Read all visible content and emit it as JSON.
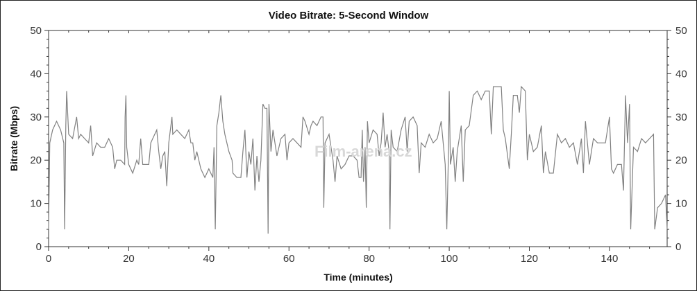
{
  "chart_data": {
    "type": "line",
    "title": "Video Bitrate: 5-Second Window",
    "xlabel": "Time (minutes)",
    "ylabel": "Bitrate (Mbps)",
    "xlim": [
      0,
      154.4
    ],
    "ylim": [
      0,
      50
    ],
    "x_ticks": [
      "0",
      "20",
      "40",
      "60",
      "80",
      "100",
      "120",
      "140"
    ],
    "y_ticks": [
      "0",
      "10",
      "20",
      "30",
      "40",
      "50"
    ],
    "right_axis_ticks": [
      "0",
      "10",
      "20",
      "30",
      "40",
      "50"
    ],
    "grid": false,
    "legend": "none",
    "line_color": "#808080",
    "watermark": "Film-arena.cz",
    "series": [
      {
        "points": [
          [
            0,
            4
          ],
          [
            0.3,
            24
          ],
          [
            1,
            27
          ],
          [
            2,
            29
          ],
          [
            3,
            27
          ],
          [
            3.8,
            24
          ],
          [
            4,
            4
          ],
          [
            4.3,
            28
          ],
          [
            4.5,
            36
          ],
          [
            5,
            26
          ],
          [
            6,
            25
          ],
          [
            7,
            30
          ],
          [
            7.5,
            25
          ],
          [
            8,
            26
          ],
          [
            9,
            25
          ],
          [
            10,
            24
          ],
          [
            10.5,
            28
          ],
          [
            11,
            21
          ],
          [
            12,
            24
          ],
          [
            13,
            23
          ],
          [
            14,
            23
          ],
          [
            15,
            25
          ],
          [
            16,
            23
          ],
          [
            16.5,
            18
          ],
          [
            17,
            20
          ],
          [
            18,
            20
          ],
          [
            19,
            19
          ],
          [
            19.1,
            30
          ],
          [
            19.3,
            35
          ],
          [
            19.5,
            23
          ],
          [
            20,
            19
          ],
          [
            21,
            17
          ],
          [
            22,
            20
          ],
          [
            22.5,
            19
          ],
          [
            23,
            25
          ],
          [
            23.5,
            19
          ],
          [
            25,
            19
          ],
          [
            25.5,
            24
          ],
          [
            26,
            25
          ],
          [
            27,
            27
          ],
          [
            27.5,
            22
          ],
          [
            28,
            18
          ],
          [
            28.5,
            21
          ],
          [
            29,
            22
          ],
          [
            29.5,
            14
          ],
          [
            30,
            24
          ],
          [
            30.8,
            30
          ],
          [
            31,
            26
          ],
          [
            32,
            27
          ],
          [
            33,
            26
          ],
          [
            34,
            25
          ],
          [
            35,
            27
          ],
          [
            35.5,
            24
          ],
          [
            36,
            24
          ],
          [
            36.5,
            20
          ],
          [
            37,
            22
          ],
          [
            38,
            18
          ],
          [
            39,
            16
          ],
          [
            40,
            18
          ],
          [
            41,
            16
          ],
          [
            41.3,
            23
          ],
          [
            41.6,
            4
          ],
          [
            42,
            28
          ],
          [
            42.5,
            31
          ],
          [
            43,
            35
          ],
          [
            43.5,
            29
          ],
          [
            44,
            26
          ],
          [
            45,
            22
          ],
          [
            45.8,
            20
          ],
          [
            46,
            17
          ],
          [
            47,
            16
          ],
          [
            48,
            16
          ],
          [
            48.5,
            22
          ],
          [
            49,
            27
          ],
          [
            49.5,
            16
          ],
          [
            50,
            22
          ],
          [
            50.5,
            19
          ],
          [
            51,
            25
          ],
          [
            51.5,
            13
          ],
          [
            52,
            21
          ],
          [
            52.5,
            15
          ],
          [
            53,
            20
          ],
          [
            53.5,
            33
          ],
          [
            54,
            32
          ],
          [
            54.5,
            32
          ],
          [
            54.8,
            3
          ],
          [
            55,
            33
          ],
          [
            55.5,
            22
          ],
          [
            56,
            27
          ],
          [
            57,
            21
          ],
          [
            58,
            25
          ],
          [
            59,
            26
          ],
          [
            59.5,
            20
          ],
          [
            60,
            24
          ],
          [
            61,
            25
          ],
          [
            62,
            24
          ],
          [
            63,
            23
          ],
          [
            63.5,
            30
          ],
          [
            64,
            29
          ],
          [
            65,
            26
          ],
          [
            65.5,
            28
          ],
          [
            66,
            29
          ],
          [
            67,
            28
          ],
          [
            68,
            30
          ],
          [
            68.5,
            30
          ],
          [
            68.7,
            9
          ],
          [
            69,
            24
          ],
          [
            70,
            26
          ],
          [
            71,
            20
          ],
          [
            71.5,
            15
          ],
          [
            72,
            21
          ],
          [
            73,
            18
          ],
          [
            74,
            19
          ],
          [
            75,
            21
          ],
          [
            76,
            21
          ],
          [
            77,
            20
          ],
          [
            77.5,
            16
          ],
          [
            78,
            16
          ],
          [
            78.3,
            27
          ],
          [
            78.6,
            15
          ],
          [
            79,
            23
          ],
          [
            79.3,
            9
          ],
          [
            79.6,
            29
          ],
          [
            80,
            24
          ],
          [
            81,
            27
          ],
          [
            82,
            26
          ],
          [
            82.5,
            21
          ],
          [
            83,
            24
          ],
          [
            83.5,
            31
          ],
          [
            84,
            23
          ],
          [
            84.5,
            26
          ],
          [
            85,
            22
          ],
          [
            85.2,
            4
          ],
          [
            85.5,
            27
          ],
          [
            86,
            23
          ],
          [
            87,
            22
          ],
          [
            88,
            27
          ],
          [
            89,
            30
          ],
          [
            89.5,
            22
          ],
          [
            90,
            29
          ],
          [
            91,
            30
          ],
          [
            92,
            28
          ],
          [
            92.5,
            17
          ],
          [
            93,
            24
          ],
          [
            94,
            23
          ],
          [
            95,
            26
          ],
          [
            96,
            24
          ],
          [
            97,
            25
          ],
          [
            98,
            29
          ],
          [
            98.5,
            24
          ],
          [
            99,
            19
          ],
          [
            99.4,
            4
          ],
          [
            99.8,
            21
          ],
          [
            100,
            36
          ],
          [
            100.3,
            19
          ],
          [
            101,
            23
          ],
          [
            101.5,
            15
          ],
          [
            102,
            22
          ],
          [
            103,
            28
          ],
          [
            103.5,
            15
          ],
          [
            104,
            27
          ],
          [
            105,
            28
          ],
          [
            106,
            35
          ],
          [
            107,
            36
          ],
          [
            108,
            34
          ],
          [
            109,
            36
          ],
          [
            110,
            36
          ],
          [
            110.5,
            26
          ],
          [
            111,
            37
          ],
          [
            112,
            37
          ],
          [
            113,
            37
          ],
          [
            113.5,
            27
          ],
          [
            114,
            25
          ],
          [
            115,
            18
          ],
          [
            115.5,
            26
          ],
          [
            116,
            35
          ],
          [
            117,
            35
          ],
          [
            117.5,
            31
          ],
          [
            118,
            37
          ],
          [
            119,
            36
          ],
          [
            119.5,
            20
          ],
          [
            120,
            26
          ],
          [
            121,
            22
          ],
          [
            122,
            23
          ],
          [
            123,
            28
          ],
          [
            123.5,
            17
          ],
          [
            124,
            22
          ],
          [
            125,
            17
          ],
          [
            126,
            17
          ],
          [
            127,
            26
          ],
          [
            128,
            24
          ],
          [
            129,
            25
          ],
          [
            130,
            23
          ],
          [
            131,
            24
          ],
          [
            132,
            19
          ],
          [
            133,
            25
          ],
          [
            133.5,
            17
          ],
          [
            134,
            29
          ],
          [
            135,
            19
          ],
          [
            136,
            25
          ],
          [
            137,
            24
          ],
          [
            138,
            24
          ],
          [
            139,
            24
          ],
          [
            140,
            30
          ],
          [
            140.5,
            18
          ],
          [
            141,
            17
          ],
          [
            142,
            19
          ],
          [
            143,
            19
          ],
          [
            143.5,
            13
          ],
          [
            144,
            35
          ],
          [
            144.5,
            24
          ],
          [
            145,
            33
          ],
          [
            145.3,
            4
          ],
          [
            146,
            23
          ],
          [
            147,
            22
          ],
          [
            148,
            25
          ],
          [
            149,
            24
          ],
          [
            150,
            25
          ],
          [
            151,
            26
          ],
          [
            151.3,
            4
          ],
          [
            152,
            9
          ],
          [
            153,
            10
          ],
          [
            154,
            12
          ],
          [
            154.4,
            4
          ]
        ]
      }
    ]
  }
}
